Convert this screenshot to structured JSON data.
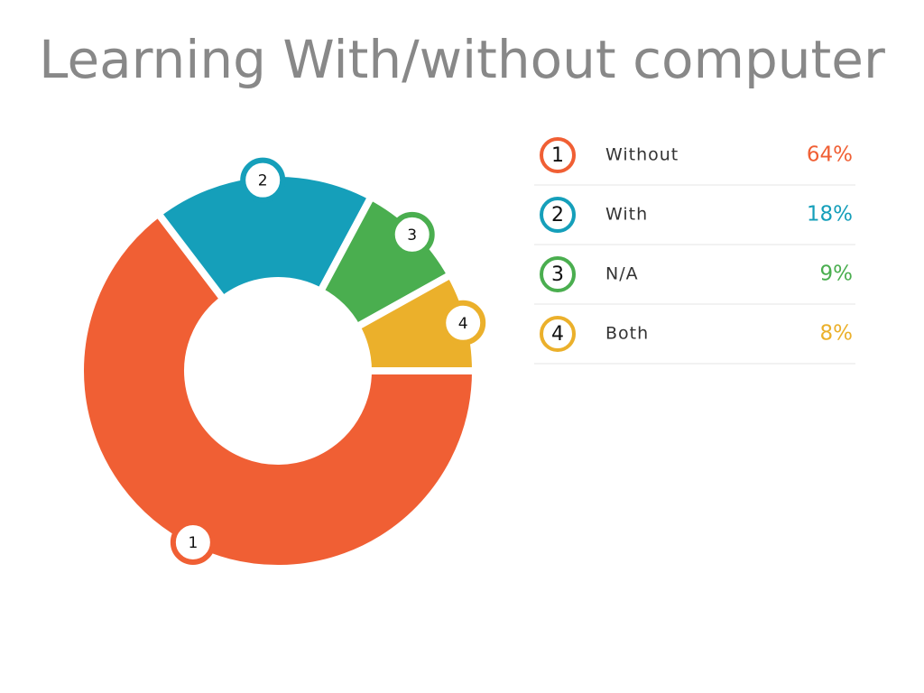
{
  "chart_data": {
    "type": "donut",
    "title": "Learning With/without computer",
    "categories": [
      "Without",
      "With",
      "N/A",
      "Both"
    ],
    "badges": [
      "1",
      "2",
      "3",
      "4"
    ],
    "values": [
      64,
      18,
      9,
      8
    ],
    "value_labels": [
      "64%",
      "18%",
      "9%",
      "8%"
    ],
    "colors": [
      "#f05f34",
      "#159fba",
      "#4aae4f",
      "#ebb02b"
    ]
  }
}
